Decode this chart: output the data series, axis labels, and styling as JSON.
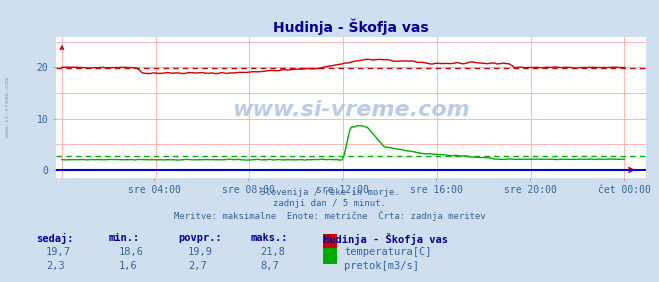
{
  "title": "Hudinja - Škofja vas",
  "bg_color": "#d0dff0",
  "plot_bg_color": "#ffffff",
  "grid_color": "#ffaaaa",
  "x_labels": [
    "sre 04:00",
    "sre 08:00",
    "sre 12:00",
    "sre 16:00",
    "sre 20:00",
    "čet 00:00"
  ],
  "y_ticks": [
    0,
    10,
    20
  ],
  "title_color": "#000099",
  "tick_label_color": "#336699",
  "subtitle_color": "#336699",
  "watermark": "www.si-vreme.com",
  "subtitle_lines": [
    "Slovenija / reke in morje.",
    "zadnji dan / 5 minut.",
    "Meritve: maksimalne  Enote: metrične  Črta: zadnja meritev"
  ],
  "table_header": [
    "sedaj:",
    "min.:",
    "povpr.:",
    "maks.:"
  ],
  "table_header_color": "#000099",
  "table_data": [
    [
      "19,7",
      "18,6",
      "19,9",
      "21,8"
    ],
    [
      "2,3",
      "1,6",
      "2,7",
      "8,7"
    ]
  ],
  "table_data_color": "#336699",
  "legend_title": "Hudinja - Škofja vas",
  "legend_items": [
    {
      "label": "temperatura[C]",
      "color": "#cc0000"
    },
    {
      "label": "pretok[m3/s]",
      "color": "#00aa00"
    }
  ],
  "temp_avg": 19.9,
  "flow_avg": 2.7,
  "temp_color": "#cc0000",
  "flow_color": "#00aa00",
  "blue_line_color": "#0000dd",
  "n_points": 288
}
